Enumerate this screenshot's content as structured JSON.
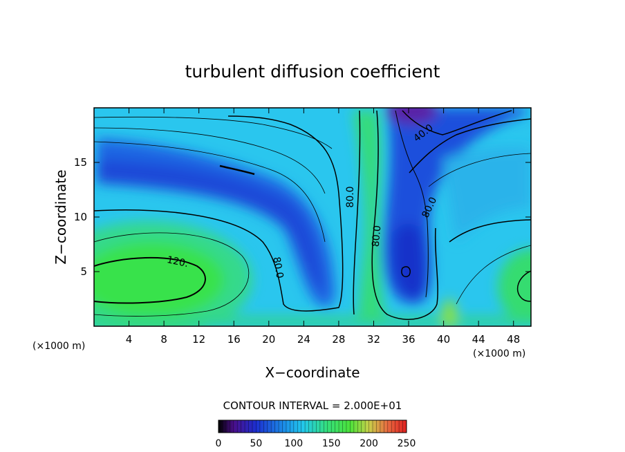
{
  "chart_data": {
    "type": "contour",
    "title": "turbulent diffusion coefficient",
    "xlabel": "X−coordinate",
    "ylabel": "Z−coordinate",
    "x_unit": "(×1000 m)",
    "y_unit": "(×1000 m)",
    "xlim": [
      0,
      50
    ],
    "ylim": [
      0,
      20
    ],
    "x_ticks": [
      4,
      8,
      12,
      16,
      20,
      24,
      28,
      32,
      36,
      40,
      44,
      48
    ],
    "y_ticks": [
      5,
      10,
      15
    ],
    "contour_interval_label": "CONTOUR INTERVAL = 2.000E+01",
    "contour_interval": 20,
    "contour_labels": [
      {
        "text": "120.",
        "x": 9.5,
        "z": 5.8
      },
      {
        "text": "80.0",
        "x": 21.5,
        "z": 5.3
      },
      {
        "text": "80.0",
        "x": 29.5,
        "z": 11.5
      },
      {
        "text": "80.0",
        "x": 32.6,
        "z": 8.0
      },
      {
        "text": "80.0",
        "x": 38.8,
        "z": 10.7
      },
      {
        "text": "40.0",
        "x": 38.8,
        "z": 17.3
      }
    ],
    "colorbar": {
      "min": 0,
      "max": 250,
      "tick_labels": [
        "0",
        "50",
        "100",
        "150",
        "200",
        "250"
      ],
      "tick_values": [
        0,
        50,
        100,
        150,
        200,
        250
      ]
    },
    "colors": {
      "background": "#ffffff",
      "low_purple": "#5a1f8c",
      "blue": "#1a3fd9",
      "cyan": "#22c8ec",
      "green": "#33e33a",
      "red": "#e03020"
    }
  }
}
